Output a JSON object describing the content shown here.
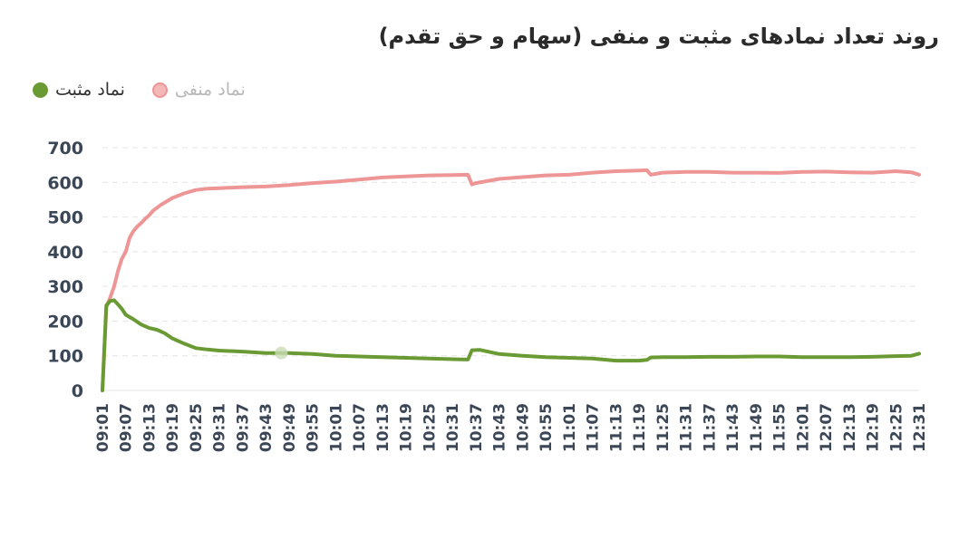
{
  "title": "روند تعداد نمادهای مثبت و منفی (سهام و حق تقدم)",
  "legend": {
    "positive_label": "نماد مثبت",
    "negative_label": "نماد منفی"
  },
  "colors": {
    "positive": "#6a9a34",
    "negative": "#ee9596",
    "negative_legend_dot": "#f4b7b8",
    "grid": "#e4e4e4"
  },
  "chart_data": {
    "type": "line",
    "title": "روند تعداد نمادهای مثبت و منفی (سهام و حق تقدم)",
    "xlabel": "",
    "ylabel": "",
    "ylim": [
      0,
      700
    ],
    "yticks": [
      0,
      100,
      200,
      300,
      400,
      500,
      600,
      700
    ],
    "grid": true,
    "legend_position": "top-left",
    "x_tick_labels": [
      "09:01",
      "09:07",
      "09:13",
      "09:19",
      "09:25",
      "09:31",
      "09:37",
      "09:43",
      "09:49",
      "09:55",
      "10:01",
      "10:07",
      "10:13",
      "10:19",
      "10:25",
      "10:31",
      "10:37",
      "10:43",
      "10:49",
      "10:55",
      "11:01",
      "11:07",
      "11:13",
      "11:19",
      "11:25",
      "11:31",
      "11:37",
      "11:43",
      "11:49",
      "11:55",
      "12:01",
      "12:07",
      "12:13",
      "12:19",
      "12:25",
      "12:31"
    ],
    "series": [
      {
        "name": "نماد منفی",
        "color": "#ee9596",
        "points": [
          [
            "09:01",
            0
          ],
          [
            "09:02",
            240
          ],
          [
            "09:03",
            268
          ],
          [
            "09:04",
            300
          ],
          [
            "09:05",
            345
          ],
          [
            "09:06",
            380
          ],
          [
            "09:07",
            400
          ],
          [
            "09:08",
            440
          ],
          [
            "09:09",
            460
          ],
          [
            "09:10",
            473
          ],
          [
            "09:11",
            483
          ],
          [
            "09:12",
            495
          ],
          [
            "09:13",
            505
          ],
          [
            "09:14",
            518
          ],
          [
            "09:16",
            535
          ],
          [
            "09:19",
            555
          ],
          [
            "09:22",
            568
          ],
          [
            "09:25",
            578
          ],
          [
            "09:28",
            582
          ],
          [
            "09:31",
            583
          ],
          [
            "09:37",
            586
          ],
          [
            "09:43",
            588
          ],
          [
            "09:49",
            592
          ],
          [
            "09:55",
            598
          ],
          [
            "10:01",
            602
          ],
          [
            "10:07",
            608
          ],
          [
            "10:13",
            614
          ],
          [
            "10:19",
            617
          ],
          [
            "10:25",
            620
          ],
          [
            "10:31",
            621
          ],
          [
            "10:35",
            622
          ],
          [
            "10:36",
            594
          ],
          [
            "10:37",
            598
          ],
          [
            "10:43",
            610
          ],
          [
            "10:49",
            615
          ],
          [
            "10:55",
            620
          ],
          [
            "11:01",
            622
          ],
          [
            "11:07",
            628
          ],
          [
            "11:13",
            632
          ],
          [
            "11:19",
            634
          ],
          [
            "11:21",
            635
          ],
          [
            "11:22",
            622
          ],
          [
            "11:25",
            628
          ],
          [
            "11:31",
            630
          ],
          [
            "11:37",
            630
          ],
          [
            "11:43",
            628
          ],
          [
            "11:49",
            628
          ],
          [
            "11:55",
            627
          ],
          [
            "12:01",
            630
          ],
          [
            "12:07",
            631
          ],
          [
            "12:13",
            629
          ],
          [
            "12:19",
            628
          ],
          [
            "12:25",
            632
          ],
          [
            "12:29",
            629
          ],
          [
            "12:31",
            622
          ]
        ]
      },
      {
        "name": "نماد مثبت",
        "color": "#6a9a34",
        "points": [
          [
            "09:01",
            0
          ],
          [
            "09:02",
            245
          ],
          [
            "09:03",
            258
          ],
          [
            "09:04",
            260
          ],
          [
            "09:05",
            248
          ],
          [
            "09:06",
            235
          ],
          [
            "09:07",
            218
          ],
          [
            "09:09",
            205
          ],
          [
            "09:11",
            190
          ],
          [
            "09:13",
            180
          ],
          [
            "09:15",
            175
          ],
          [
            "09:17",
            165
          ],
          [
            "09:19",
            150
          ],
          [
            "09:22",
            135
          ],
          [
            "09:25",
            122
          ],
          [
            "09:28",
            118
          ],
          [
            "09:31",
            115
          ],
          [
            "09:37",
            112
          ],
          [
            "09:43",
            108
          ],
          [
            "09:49",
            108
          ],
          [
            "09:55",
            105
          ],
          [
            "10:01",
            100
          ],
          [
            "10:07",
            98
          ],
          [
            "10:13",
            96
          ],
          [
            "10:19",
            94
          ],
          [
            "10:25",
            92
          ],
          [
            "10:31",
            90
          ],
          [
            "10:35",
            89
          ],
          [
            "10:36",
            116
          ],
          [
            "10:38",
            117
          ],
          [
            "10:43",
            105
          ],
          [
            "10:49",
            100
          ],
          [
            "10:55",
            96
          ],
          [
            "11:01",
            94
          ],
          [
            "11:07",
            92
          ],
          [
            "11:13",
            86
          ],
          [
            "11:19",
            86
          ],
          [
            "11:21",
            88
          ],
          [
            "11:22",
            95
          ],
          [
            "11:25",
            96
          ],
          [
            "11:31",
            96
          ],
          [
            "11:37",
            97
          ],
          [
            "11:43",
            97
          ],
          [
            "11:49",
            98
          ],
          [
            "11:55",
            98
          ],
          [
            "12:01",
            96
          ],
          [
            "12:07",
            96
          ],
          [
            "12:13",
            96
          ],
          [
            "12:19",
            97
          ],
          [
            "12:25",
            99
          ],
          [
            "12:29",
            100
          ],
          [
            "12:31",
            106
          ]
        ]
      }
    ]
  }
}
